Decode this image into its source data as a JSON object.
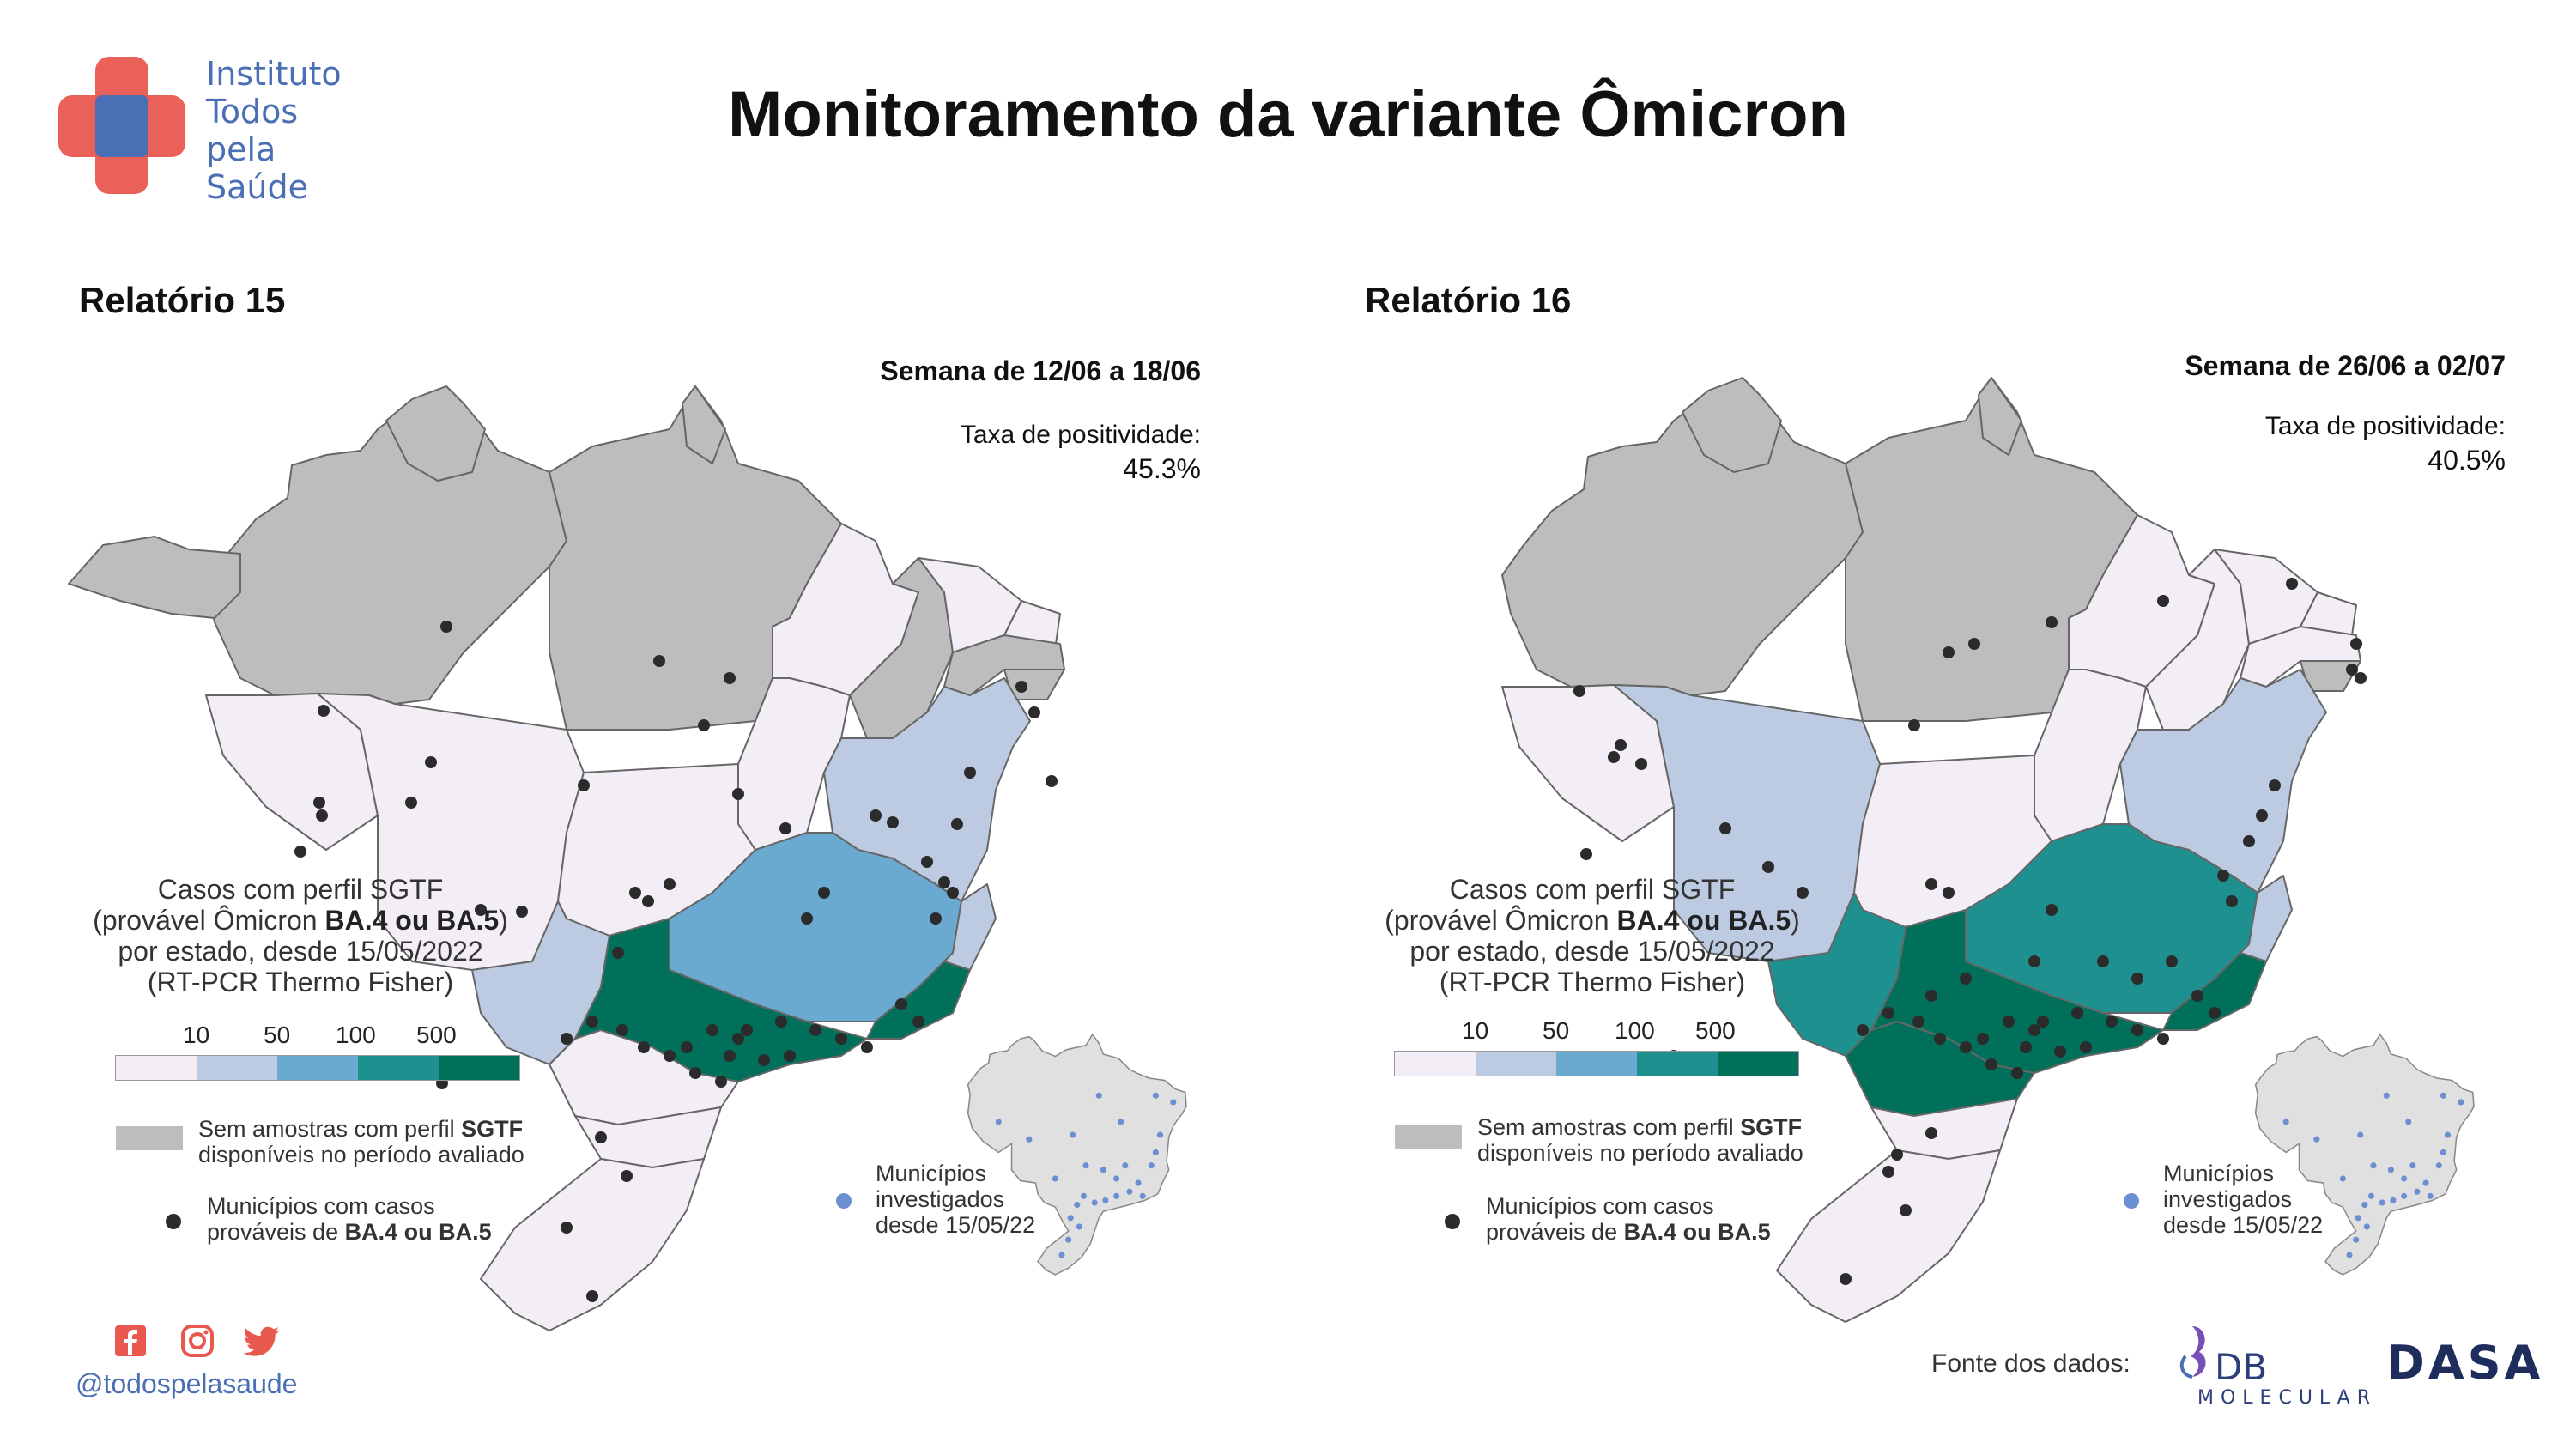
{
  "logo": {
    "lines": [
      "Instituto",
      "Todos",
      "pela",
      "Saúde"
    ]
  },
  "main_title": "Monitoramento da variante Ômicron",
  "panels": [
    {
      "title": "Relatório 15",
      "week": "Semana de 12/06 a 18/06",
      "rate_label": "Taxa de positividade:",
      "rate_value": "45.3%"
    },
    {
      "title": "Relatório 16",
      "week": "Semana de 26/06 a 02/07",
      "rate_label": "Taxa de positividade:",
      "rate_value": "40.5%"
    }
  ],
  "legend": {
    "title_line1": "Casos com perfil SGTF",
    "title_line2_pre": "(provável Ômicron ",
    "title_line2_bold": "BA.4 ou BA.5",
    "title_line2_post": ")",
    "title_line3": "por estado, desde 15/05/2022",
    "title_line4": "(RT-PCR Thermo Fisher)",
    "scale_labels": [
      "10",
      "50",
      "100",
      "500"
    ],
    "scale_colors": [
      "#f3eef6",
      "#bccbe2",
      "#6aaad0",
      "#1f9090",
      "#00705a"
    ],
    "no_sample_pre": "Sem amostras com perfil ",
    "no_sample_bold": "SGTF",
    "no_sample_line2": "disponíveis no período avaliado",
    "no_sample_color": "#bdbdbd",
    "muni_line1": "Municípios com casos",
    "muni_line2_pre": "prováveis de ",
    "muni_line2_bold": "BA.4 ou BA.5"
  },
  "inset": {
    "line1": "Municípios",
    "line2": "investigados",
    "line3": "desde 15/05/22",
    "dot_color": "#6b8fd0"
  },
  "footer": {
    "handle": "@todospelasaude",
    "social_icons": [
      "facebook-icon",
      "instagram-icon",
      "twitter-icon"
    ],
    "social_color": "#e8584f",
    "source_label": "Fonte dos dados:",
    "db_molecular_text": "DB",
    "db_molecular_sub": "MOLECULAR",
    "dasa_text": "DASA"
  }
}
